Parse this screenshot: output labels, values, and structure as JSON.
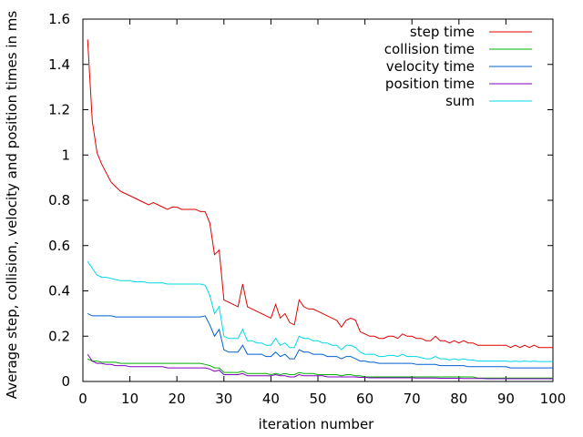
{
  "chart_data": {
    "type": "line",
    "title": "",
    "xlabel": "iteration number",
    "ylabel": "Average step, collision, velocity and position times in ms",
    "xlim": [
      0,
      100
    ],
    "ylim": [
      0,
      1.6
    ],
    "xticks": [
      0,
      10,
      20,
      30,
      40,
      50,
      60,
      70,
      80,
      90,
      100
    ],
    "yticks": [
      0,
      0.2,
      0.4,
      0.6,
      0.8,
      1,
      1.2,
      1.4,
      1.6
    ],
    "xtick_labels": [
      "0",
      "10",
      "20",
      "30",
      "40",
      "50",
      "60",
      "70",
      "80",
      "90",
      "100"
    ],
    "ytick_labels": [
      "0",
      "0.2",
      "0.4",
      "0.6",
      "0.8",
      "1",
      "1.2",
      "1.4",
      "1.6"
    ],
    "grid": false,
    "legend_position": "top-right",
    "x": [
      1,
      2,
      3,
      4,
      5,
      6,
      7,
      8,
      9,
      10,
      11,
      12,
      13,
      14,
      15,
      16,
      17,
      18,
      19,
      20,
      21,
      22,
      23,
      24,
      25,
      26,
      27,
      28,
      29,
      30,
      31,
      32,
      33,
      34,
      35,
      36,
      37,
      38,
      39,
      40,
      41,
      42,
      43,
      44,
      45,
      46,
      47,
      48,
      49,
      50,
      51,
      52,
      53,
      54,
      55,
      56,
      57,
      58,
      59,
      60,
      61,
      62,
      63,
      64,
      65,
      66,
      67,
      68,
      69,
      70,
      71,
      72,
      73,
      74,
      75,
      76,
      77,
      78,
      79,
      80,
      81,
      82,
      83,
      84,
      85,
      86,
      87,
      88,
      89,
      90,
      91,
      92,
      93,
      94,
      95,
      96,
      97,
      98,
      99,
      100
    ],
    "series": [
      {
        "name": "step time",
        "color": "#e00000",
        "values": [
          1.51,
          1.15,
          1.01,
          0.96,
          0.92,
          0.88,
          0.86,
          0.84,
          0.83,
          0.82,
          0.81,
          0.8,
          0.79,
          0.78,
          0.79,
          0.78,
          0.77,
          0.76,
          0.77,
          0.77,
          0.76,
          0.76,
          0.76,
          0.76,
          0.75,
          0.75,
          0.7,
          0.56,
          0.58,
          0.36,
          0.35,
          0.34,
          0.33,
          0.43,
          0.33,
          0.32,
          0.31,
          0.3,
          0.29,
          0.28,
          0.34,
          0.28,
          0.3,
          0.26,
          0.25,
          0.36,
          0.33,
          0.32,
          0.32,
          0.31,
          0.3,
          0.29,
          0.28,
          0.27,
          0.24,
          0.27,
          0.28,
          0.27,
          0.22,
          0.21,
          0.2,
          0.2,
          0.19,
          0.19,
          0.2,
          0.2,
          0.19,
          0.21,
          0.2,
          0.2,
          0.19,
          0.19,
          0.18,
          0.18,
          0.2,
          0.18,
          0.18,
          0.17,
          0.18,
          0.17,
          0.18,
          0.17,
          0.17,
          0.16,
          0.16,
          0.16,
          0.16,
          0.16,
          0.16,
          0.16,
          0.15,
          0.16,
          0.15,
          0.16,
          0.15,
          0.16,
          0.15,
          0.15,
          0.15,
          0.15
        ]
      },
      {
        "name": "collision time",
        "color": "#00b000",
        "values": [
          0.1,
          0.09,
          0.09,
          0.085,
          0.085,
          0.085,
          0.085,
          0.08,
          0.08,
          0.08,
          0.08,
          0.08,
          0.08,
          0.08,
          0.08,
          0.08,
          0.08,
          0.08,
          0.08,
          0.08,
          0.08,
          0.08,
          0.08,
          0.08,
          0.08,
          0.075,
          0.07,
          0.06,
          0.06,
          0.04,
          0.04,
          0.04,
          0.04,
          0.045,
          0.035,
          0.035,
          0.035,
          0.035,
          0.035,
          0.03,
          0.035,
          0.03,
          0.035,
          0.03,
          0.03,
          0.04,
          0.035,
          0.035,
          0.035,
          0.03,
          0.03,
          0.03,
          0.03,
          0.03,
          0.025,
          0.03,
          0.03,
          0.025,
          0.025,
          0.02,
          0.02,
          0.02,
          0.02,
          0.02,
          0.02,
          0.02,
          0.02,
          0.02,
          0.02,
          0.02,
          0.02,
          0.02,
          0.02,
          0.02,
          0.02,
          0.02,
          0.02,
          0.02,
          0.02,
          0.02,
          0.02,
          0.02,
          0.02,
          0.015,
          0.015,
          0.015,
          0.015,
          0.015,
          0.015,
          0.015,
          0.015,
          0.015,
          0.015,
          0.015,
          0.015,
          0.015,
          0.015,
          0.015,
          0.015,
          0.015
        ]
      },
      {
        "name": "velocity time",
        "color": "#0060d0",
        "values": [
          0.3,
          0.29,
          0.29,
          0.29,
          0.29,
          0.29,
          0.285,
          0.285,
          0.285,
          0.285,
          0.285,
          0.285,
          0.285,
          0.285,
          0.285,
          0.285,
          0.285,
          0.285,
          0.285,
          0.285,
          0.285,
          0.285,
          0.285,
          0.285,
          0.285,
          0.29,
          0.25,
          0.2,
          0.23,
          0.14,
          0.13,
          0.13,
          0.13,
          0.16,
          0.12,
          0.12,
          0.12,
          0.12,
          0.11,
          0.11,
          0.13,
          0.11,
          0.12,
          0.1,
          0.1,
          0.14,
          0.13,
          0.13,
          0.12,
          0.12,
          0.12,
          0.11,
          0.11,
          0.11,
          0.1,
          0.11,
          0.11,
          0.1,
          0.09,
          0.09,
          0.085,
          0.085,
          0.08,
          0.08,
          0.08,
          0.08,
          0.08,
          0.08,
          0.08,
          0.08,
          0.075,
          0.075,
          0.075,
          0.075,
          0.075,
          0.07,
          0.07,
          0.07,
          0.07,
          0.07,
          0.07,
          0.065,
          0.065,
          0.065,
          0.065,
          0.065,
          0.065,
          0.065,
          0.065,
          0.065,
          0.06,
          0.06,
          0.06,
          0.06,
          0.06,
          0.06,
          0.06,
          0.06,
          0.06,
          0.06
        ]
      },
      {
        "name": "position time",
        "color": "#8000c0",
        "values": [
          0.12,
          0.09,
          0.08,
          0.08,
          0.075,
          0.075,
          0.07,
          0.07,
          0.07,
          0.065,
          0.065,
          0.065,
          0.065,
          0.065,
          0.065,
          0.065,
          0.065,
          0.06,
          0.06,
          0.06,
          0.06,
          0.06,
          0.06,
          0.06,
          0.06,
          0.06,
          0.055,
          0.045,
          0.05,
          0.03,
          0.03,
          0.03,
          0.03,
          0.035,
          0.025,
          0.025,
          0.025,
          0.025,
          0.025,
          0.025,
          0.03,
          0.025,
          0.025,
          0.02,
          0.02,
          0.03,
          0.025,
          0.025,
          0.025,
          0.025,
          0.025,
          0.02,
          0.02,
          0.02,
          0.02,
          0.02,
          0.02,
          0.02,
          0.018,
          0.018,
          0.016,
          0.016,
          0.016,
          0.016,
          0.016,
          0.016,
          0.016,
          0.016,
          0.016,
          0.016,
          0.015,
          0.015,
          0.015,
          0.015,
          0.015,
          0.014,
          0.014,
          0.014,
          0.014,
          0.014,
          0.013,
          0.013,
          0.013,
          0.013,
          0.013,
          0.012,
          0.012,
          0.012,
          0.012,
          0.012,
          0.012,
          0.012,
          0.012,
          0.012,
          0.012,
          0.012,
          0.012,
          0.012,
          0.012,
          0.012
        ]
      },
      {
        "name": "sum",
        "color": "#00d8e8",
        "values": [
          0.53,
          0.5,
          0.47,
          0.46,
          0.46,
          0.455,
          0.45,
          0.445,
          0.445,
          0.445,
          0.44,
          0.44,
          0.44,
          0.435,
          0.435,
          0.435,
          0.435,
          0.43,
          0.43,
          0.43,
          0.43,
          0.43,
          0.43,
          0.43,
          0.43,
          0.425,
          0.38,
          0.3,
          0.33,
          0.2,
          0.19,
          0.19,
          0.19,
          0.23,
          0.18,
          0.18,
          0.17,
          0.17,
          0.16,
          0.16,
          0.19,
          0.16,
          0.17,
          0.15,
          0.15,
          0.2,
          0.19,
          0.19,
          0.18,
          0.18,
          0.17,
          0.17,
          0.16,
          0.16,
          0.14,
          0.16,
          0.16,
          0.15,
          0.13,
          0.12,
          0.12,
          0.12,
          0.11,
          0.11,
          0.115,
          0.115,
          0.11,
          0.12,
          0.11,
          0.11,
          0.11,
          0.105,
          0.1,
          0.1,
          0.11,
          0.1,
          0.1,
          0.095,
          0.1,
          0.095,
          0.1,
          0.095,
          0.095,
          0.09,
          0.09,
          0.09,
          0.09,
          0.09,
          0.09,
          0.09,
          0.088,
          0.09,
          0.088,
          0.09,
          0.088,
          0.09,
          0.088,
          0.088,
          0.088,
          0.088
        ]
      }
    ]
  }
}
